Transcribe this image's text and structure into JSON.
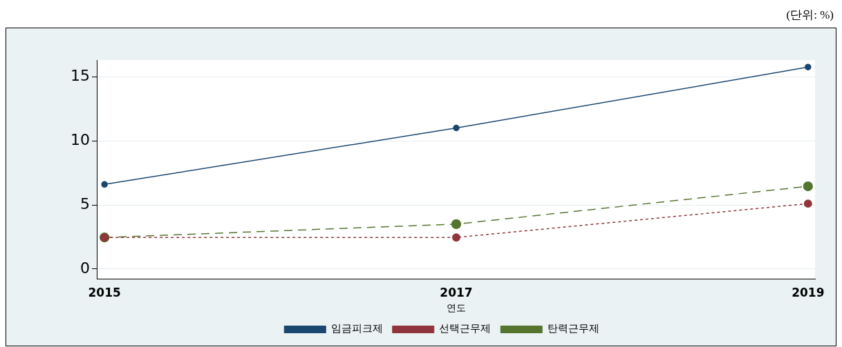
{
  "chart_data": {
    "type": "line",
    "xlabel": "연도",
    "annotations": [
      "(단위: %)"
    ],
    "x": [
      2015,
      2017,
      2019
    ],
    "xlim": [
      2014.96,
      2019.04
    ],
    "xticks": [
      2015,
      2017,
      2019
    ],
    "ylim": [
      -0.8,
      16.3
    ],
    "yticks": [
      0,
      5,
      10,
      15
    ],
    "grid": "y",
    "legend": "bottom",
    "marker": "circle",
    "series": [
      {
        "name": "임금피크제",
        "color": "#1a476f",
        "values": [
          6.6,
          11.0,
          15.75
        ],
        "line_style": "solid"
      },
      {
        "name": "선택근무제",
        "color": "#90353b",
        "values": [
          2.46,
          2.46,
          5.1
        ],
        "line_style": "dotted"
      },
      {
        "name": "탄력근무제",
        "color": "#55752f",
        "values": [
          2.46,
          3.5,
          6.45
        ],
        "line_style": "dashed"
      }
    ]
  }
}
